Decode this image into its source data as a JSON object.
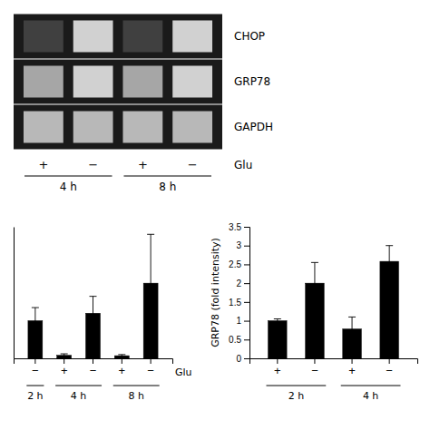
{
  "chart_data": [
    {
      "type": "heatmap",
      "rows": [
        "CHOP",
        "GRP78",
        "GAPDH"
      ],
      "categories": [
        "+",
        "−",
        "+",
        "−"
      ],
      "xlabel": "Glu",
      "annotations": [
        "4 h",
        "8 h"
      ],
      "cells": [
        [
          0.25,
          0.82,
          0.25,
          0.82
        ],
        [
          0.65,
          0.82,
          0.65,
          0.82
        ],
        [
          0.72,
          0.72,
          0.72,
          0.72
        ]
      ],
      "color": "#1a1a1a"
    },
    {
      "type": "bar",
      "categories": [
        "−",
        "+",
        "−",
        "+",
        "−"
      ],
      "values": [
        1.0,
        0.08,
        1.2,
        0.07,
        2.0
      ],
      "errors": [
        0.35,
        0.04,
        0.45,
        0.03,
        1.3
      ],
      "color": "#000000",
      "ylim": [
        0,
        3.5
      ],
      "xlabel": "Glu",
      "annotations": [
        "2 h",
        "4 h",
        "8 h"
      ],
      "tick_labels": "x"
    },
    {
      "type": "bar",
      "categories": [
        "+",
        "−",
        "+",
        "−"
      ],
      "values": [
        1.0,
        2.0,
        0.78,
        2.58
      ],
      "errors": [
        0.05,
        0.55,
        0.32,
        0.42
      ],
      "color": "#000000",
      "ylabel": "GRP78 (fold intensity)",
      "ylim": [
        0,
        3.5
      ],
      "yticks": [
        0,
        0.5,
        1,
        1.5,
        2,
        2.5,
        3,
        3.5
      ],
      "annotations": [
        "2 h",
        "4 h"
      ]
    }
  ]
}
